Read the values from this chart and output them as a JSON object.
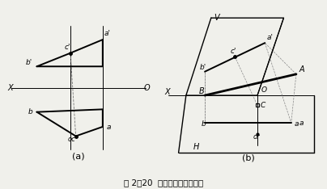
{
  "fig_width": 4.04,
  "fig_height": 2.34,
  "dpi": 100,
  "bg_color": "#f0f0eb",
  "caption": "图 2－20  不在直线上点的投影",
  "caption_fontsize": 7.5,
  "label_a": "(a)",
  "label_b": "(b)"
}
